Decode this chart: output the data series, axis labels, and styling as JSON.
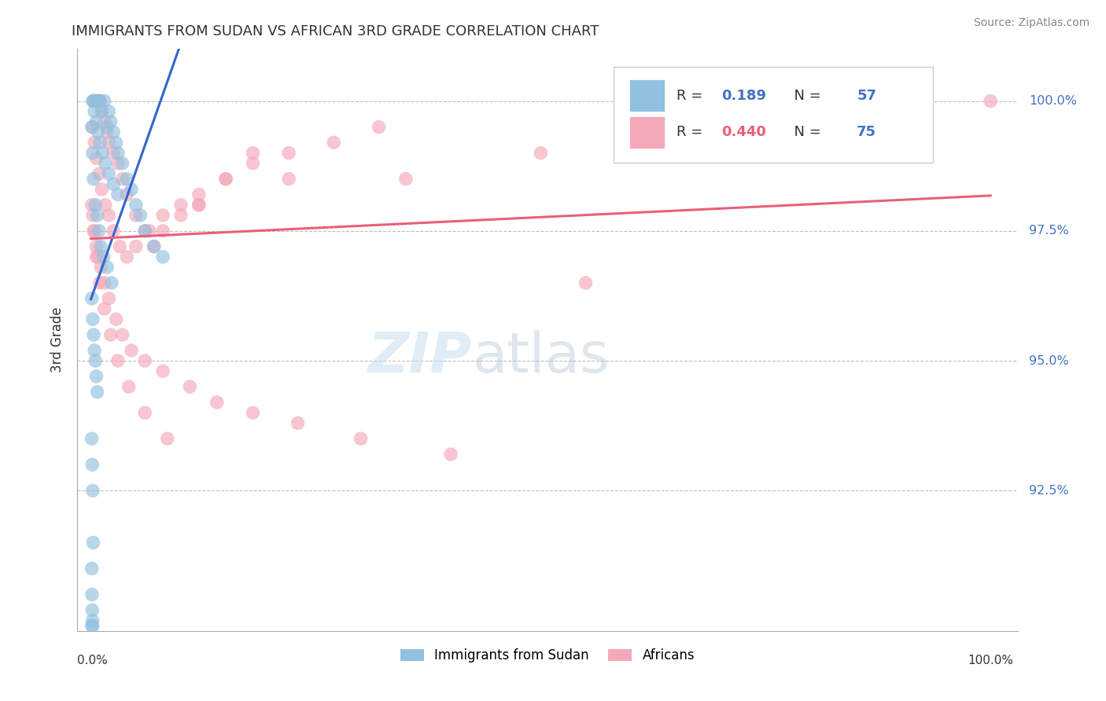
{
  "title": "IMMIGRANTS FROM SUDAN VS AFRICAN 3RD GRADE CORRELATION CHART",
  "ylabel": "3rd Grade",
  "source": "Source: ZipAtlas.com",
  "legend_label_blue": "Immigrants from Sudan",
  "legend_label_pink": "Africans",
  "watermark_zip": "ZIP",
  "watermark_atlas": "atlas",
  "R_blue": 0.189,
  "N_blue": 57,
  "R_pink": 0.44,
  "N_pink": 75,
  "color_blue": "#92c0e0",
  "color_pink": "#f4a8b8",
  "line_color_blue": "#3366cc",
  "line_color_pink": "#e8607a",
  "yticks": [
    92.5,
    95.0,
    97.5,
    100.0
  ],
  "ylim_bottom": 89.8,
  "ylim_top": 101.0,
  "xlim_left": -1.5,
  "xlim_right": 103.0,
  "blue_x": [
    0.3,
    0.5,
    0.8,
    1.0,
    1.2,
    1.5,
    1.8,
    2.0,
    2.2,
    2.5,
    2.8,
    3.0,
    3.5,
    4.0,
    4.5,
    5.0,
    5.5,
    6.0,
    7.0,
    8.0,
    0.2,
    0.4,
    0.6,
    0.8,
    1.0,
    1.3,
    1.6,
    2.0,
    2.5,
    3.0,
    0.1,
    0.2,
    0.3,
    0.5,
    0.7,
    0.9,
    1.1,
    1.4,
    1.8,
    2.3,
    0.1,
    0.2,
    0.3,
    0.4,
    0.5,
    0.6,
    0.7,
    0.1,
    0.15,
    0.2,
    0.25,
    0.1,
    0.12,
    0.15,
    0.18,
    0.2,
    0.1
  ],
  "blue_y": [
    100.0,
    100.0,
    100.0,
    100.0,
    99.8,
    100.0,
    99.5,
    99.8,
    99.6,
    99.4,
    99.2,
    99.0,
    98.8,
    98.5,
    98.3,
    98.0,
    97.8,
    97.5,
    97.2,
    97.0,
    100.0,
    99.8,
    99.6,
    99.4,
    99.2,
    99.0,
    98.8,
    98.6,
    98.4,
    98.2,
    99.5,
    99.0,
    98.5,
    98.0,
    97.8,
    97.5,
    97.2,
    97.0,
    96.8,
    96.5,
    96.2,
    95.8,
    95.5,
    95.2,
    95.0,
    94.7,
    94.4,
    93.5,
    93.0,
    92.5,
    91.5,
    91.0,
    90.5,
    90.2,
    90.0,
    89.9,
    89.9
  ],
  "pink_x": [
    0.3,
    0.5,
    0.8,
    1.0,
    1.2,
    1.5,
    1.8,
    2.0,
    2.5,
    3.0,
    3.5,
    4.0,
    5.0,
    6.0,
    7.0,
    8.0,
    10.0,
    12.0,
    15.0,
    18.0,
    0.2,
    0.4,
    0.6,
    0.9,
    1.2,
    1.6,
    2.0,
    2.5,
    3.2,
    4.0,
    5.0,
    6.5,
    8.0,
    10.0,
    12.0,
    15.0,
    18.0,
    22.0,
    27.0,
    32.0,
    0.1,
    0.2,
    0.4,
    0.6,
    0.8,
    1.1,
    1.5,
    2.0,
    2.8,
    3.5,
    4.5,
    6.0,
    8.0,
    11.0,
    14.0,
    18.0,
    23.0,
    30.0,
    40.0,
    55.0,
    0.3,
    0.6,
    1.0,
    1.5,
    2.2,
    3.0,
    4.2,
    6.0,
    8.5,
    75.0,
    12.0,
    22.0,
    35.0,
    50.0,
    100.0
  ],
  "pink_y": [
    100.0,
    100.0,
    100.0,
    100.0,
    99.8,
    99.6,
    99.4,
    99.2,
    99.0,
    98.8,
    98.5,
    98.2,
    97.8,
    97.5,
    97.2,
    97.5,
    97.8,
    98.0,
    98.5,
    99.0,
    99.5,
    99.2,
    98.9,
    98.6,
    98.3,
    98.0,
    97.8,
    97.5,
    97.2,
    97.0,
    97.2,
    97.5,
    97.8,
    98.0,
    98.2,
    98.5,
    98.8,
    99.0,
    99.2,
    99.5,
    98.0,
    97.8,
    97.5,
    97.2,
    97.0,
    96.8,
    96.5,
    96.2,
    95.8,
    95.5,
    95.2,
    95.0,
    94.8,
    94.5,
    94.2,
    94.0,
    93.8,
    93.5,
    93.2,
    96.5,
    97.5,
    97.0,
    96.5,
    96.0,
    95.5,
    95.0,
    94.5,
    94.0,
    93.5,
    100.0,
    98.0,
    98.5,
    98.5,
    99.0,
    100.0
  ]
}
